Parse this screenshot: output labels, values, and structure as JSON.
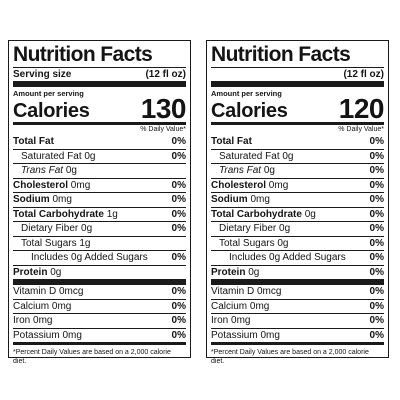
{
  "panels": [
    {
      "title": "Nutrition Facts",
      "serving_label": "Serving size",
      "serving_size": "(12 fl oz)",
      "amount_per_serving": "Amount per serving",
      "calories_label": "Calories",
      "calories_value": "130",
      "daily_value_header": "% Daily Value*",
      "nutrients": [
        {
          "label": "Total Fat",
          "amount": "",
          "dv": "0%"
        },
        {
          "label": "Saturated Fat",
          "amount": "0g",
          "dv": "0%"
        },
        {
          "label": "Trans Fat",
          "amount": "0g",
          "dv": ""
        },
        {
          "label": "Cholesterol",
          "amount": "0mg",
          "dv": "0%"
        },
        {
          "label": "Sodium",
          "amount": "0mg",
          "dv": "0%"
        },
        {
          "label": "Total Carbohydrate",
          "amount": "1g",
          "dv": "0%"
        },
        {
          "label": "Dietary Fiber",
          "amount": "0g",
          "dv": "0%"
        },
        {
          "label": "Total Sugars",
          "amount": "1g",
          "dv": ""
        },
        {
          "label": "Includes 0g Added Sugars",
          "amount": "",
          "dv": "0%"
        },
        {
          "label": "Protein",
          "amount": "0g",
          "dv": ""
        }
      ],
      "vitamins": [
        {
          "label": "Vitamin D",
          "amount": "0mcg",
          "dv": "0%"
        },
        {
          "label": "Calcium",
          "amount": "0mg",
          "dv": "0%"
        },
        {
          "label": "Iron",
          "amount": "0mg",
          "dv": "0%"
        },
        {
          "label": "Potassium",
          "amount": "0mg",
          "dv": "0%"
        }
      ],
      "footnote": "*Percent Daily Values are based on a 2,000 calorie diet."
    },
    {
      "title": "Nutrition Facts",
      "serving_label": "",
      "serving_size": "(12 fl oz)",
      "amount_per_serving": "Amount per serving",
      "calories_label": "Calories",
      "calories_value": "120",
      "daily_value_header": "% Daily Value*",
      "nutrients": [
        {
          "label": "Total Fat",
          "amount": "",
          "dv": "0%"
        },
        {
          "label": "Saturated Fat",
          "amount": "0g",
          "dv": "0%"
        },
        {
          "label": "Trans Fat",
          "amount": "0g",
          "dv": "0%"
        },
        {
          "label": "Cholesterol",
          "amount": "0mg",
          "dv": "0%"
        },
        {
          "label": "Sodium",
          "amount": "0mg",
          "dv": "0%"
        },
        {
          "label": "Total Carbohydrate",
          "amount": "0g",
          "dv": "0%"
        },
        {
          "label": "Dietary Fiber",
          "amount": "0g",
          "dv": "0%"
        },
        {
          "label": "Total Sugars",
          "amount": "0g",
          "dv": "0%"
        },
        {
          "label": "Includes 0g Added Sugars",
          "amount": "",
          "dv": "0%"
        },
        {
          "label": "Protein",
          "amount": "0g",
          "dv": "0%"
        }
      ],
      "vitamins": [
        {
          "label": "Vitamin D",
          "amount": "0mcg",
          "dv": "0%"
        },
        {
          "label": "Calcium",
          "amount": "0mg",
          "dv": "0%"
        },
        {
          "label": "Iron",
          "amount": "0mg",
          "dv": "0%"
        },
        {
          "label": "Potassium",
          "amount": "0mg",
          "dv": "0%"
        }
      ],
      "footnote": "*Percent Daily Values are based on a 2,000 calorie diet."
    }
  ]
}
